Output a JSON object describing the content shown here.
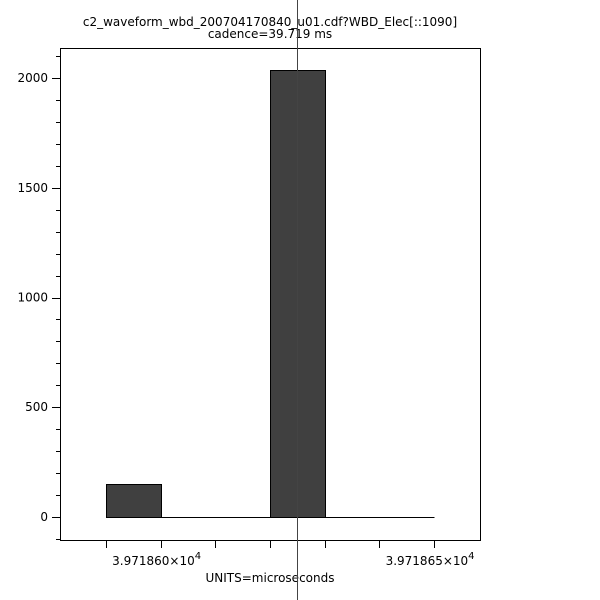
{
  "chart_data": {
    "type": "bar",
    "title": "c2_waveform_wbd_200704170840_u01.cdf?WBD_Elec[::1090]",
    "subtitle": "cadence=39.719 ms",
    "xlabel": "UNITS=microseconds",
    "ylabel": "",
    "bins": [
      {
        "x0": 39718.59,
        "x1": 39718.6,
        "value": 150
      },
      {
        "x0": 39718.6,
        "x1": 39718.61,
        "value": 0
      },
      {
        "x0": 39718.61,
        "x1": 39718.62,
        "value": 0
      },
      {
        "x0": 39718.62,
        "x1": 39718.63,
        "value": 2036
      },
      {
        "x0": 39718.63,
        "x1": 39718.64,
        "value": 0
      },
      {
        "x0": 39718.64,
        "x1": 39718.65,
        "value": 0
      }
    ],
    "xlim": [
      39718.5816,
      39718.6584
    ],
    "ylim": [
      -105,
      2137
    ],
    "x_ticks": [
      39718.59,
      39718.6,
      39718.61,
      39718.62,
      39718.63,
      39718.64,
      39718.65
    ],
    "x_tick_labels": [
      {
        "value": 39718.6,
        "mantissa": "3.971860×10",
        "exponent": "4"
      },
      {
        "value": 39718.65,
        "mantissa": "3.971865×10",
        "exponent": "4"
      }
    ],
    "y_ticks": [
      0,
      500,
      1000,
      1500,
      2000
    ],
    "y_tick_labels": [
      "0",
      "500",
      "1000",
      "1500",
      "2000"
    ],
    "y_minor_step": 100,
    "cursor_x": 39718.6249,
    "grid": false,
    "colors": {
      "bar": "#404040",
      "axis": "#000000"
    }
  }
}
